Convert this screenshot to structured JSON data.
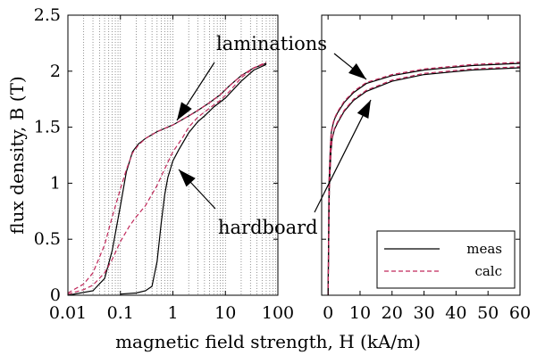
{
  "chart_data": [
    {
      "type": "line",
      "panel": "left",
      "xscale": "log",
      "xlim": [
        0.01,
        100
      ],
      "ylim": [
        0,
        2.5
      ],
      "ylabel": "flux density, B (T)",
      "xlabel": "magnetic field strength, H (kA/m)",
      "xticks": [
        "0.01",
        "0.1",
        "1",
        "10",
        "100"
      ],
      "yticks": [
        "0",
        "0.5",
        "1",
        "1.5",
        "2",
        "2.5"
      ],
      "grid": "x-minor dotted",
      "annotations": [
        "laminations",
        "hardboard"
      ],
      "series": [
        {
          "group": "laminations",
          "style": "meas",
          "x": [
            0.01,
            0.03,
            0.05,
            0.07,
            0.1,
            0.13,
            0.17,
            0.22,
            0.3,
            0.5,
            1,
            2,
            3,
            5,
            8,
            12,
            20,
            35,
            60
          ],
          "y": [
            0.0,
            0.04,
            0.15,
            0.4,
            0.8,
            1.1,
            1.28,
            1.35,
            1.4,
            1.46,
            1.52,
            1.6,
            1.65,
            1.72,
            1.79,
            1.87,
            1.96,
            2.03,
            2.07
          ]
        },
        {
          "group": "laminations",
          "style": "calc",
          "x": [
            0.01,
            0.02,
            0.03,
            0.05,
            0.07,
            0.1,
            0.13,
            0.17,
            0.22,
            0.3,
            0.5,
            1,
            2,
            3,
            5,
            8,
            12,
            20,
            35,
            60
          ],
          "y": [
            0.02,
            0.1,
            0.2,
            0.45,
            0.7,
            0.95,
            1.12,
            1.27,
            1.34,
            1.4,
            1.46,
            1.52,
            1.6,
            1.65,
            1.72,
            1.79,
            1.87,
            1.96,
            2.03,
            2.08
          ]
        },
        {
          "group": "laminations",
          "style": "calc",
          "x": [
            0.01,
            0.02,
            0.03,
            0.05,
            0.07,
            0.1,
            0.15,
            0.2,
            0.3,
            0.5,
            0.7,
            1,
            1.5,
            2,
            3,
            5,
            8,
            12,
            20,
            35,
            60
          ],
          "y": [
            0.01,
            0.05,
            0.09,
            0.2,
            0.32,
            0.48,
            0.62,
            0.7,
            0.8,
            0.98,
            1.13,
            1.28,
            1.4,
            1.5,
            1.59,
            1.67,
            1.74,
            1.82,
            1.94,
            2.03,
            2.07
          ]
        },
        {
          "group": "hardboard",
          "style": "meas",
          "x": [
            0.1,
            0.2,
            0.3,
            0.4,
            0.5,
            0.6,
            0.7,
            0.8,
            1,
            1.3,
            2,
            3,
            4,
            6,
            10,
            20,
            35,
            60
          ],
          "y": [
            0.01,
            0.02,
            0.04,
            0.08,
            0.3,
            0.65,
            0.9,
            1.05,
            1.2,
            1.3,
            1.45,
            1.55,
            1.6,
            1.68,
            1.76,
            1.91,
            2.01,
            2.06
          ]
        }
      ]
    },
    {
      "type": "line",
      "panel": "right",
      "xlim": [
        -2,
        60
      ],
      "ylim": [
        0,
        2.5
      ],
      "xticks": [
        "0",
        "10",
        "20",
        "30",
        "40",
        "50",
        "60"
      ],
      "legend": {
        "position": "bottom-right",
        "entries": [
          {
            "label": "meas",
            "style": "solid",
            "color": "#000000"
          },
          {
            "label": "calc",
            "style": "dashed",
            "color": "#c0285a"
          }
        ]
      },
      "colors": {
        "meas": "#000000",
        "calc": "#c0285a"
      },
      "series": [
        {
          "group": "laminations",
          "style": "meas",
          "x": [
            0,
            0.3,
            0.7,
            1,
            1.5,
            2,
            3,
            5,
            8,
            12,
            20,
            30,
            45,
            60
          ],
          "y": [
            0,
            1.0,
            1.32,
            1.45,
            1.52,
            1.57,
            1.63,
            1.72,
            1.81,
            1.89,
            1.96,
            2.01,
            2.05,
            2.07
          ]
        },
        {
          "group": "laminations",
          "style": "calc",
          "x": [
            0,
            0.3,
            0.7,
            1,
            1.5,
            2,
            3,
            5,
            8,
            12,
            20,
            30,
            45,
            60
          ],
          "y": [
            0,
            1.0,
            1.33,
            1.46,
            1.53,
            1.58,
            1.64,
            1.73,
            1.82,
            1.9,
            1.97,
            2.02,
            2.06,
            2.08
          ]
        },
        {
          "group": "hardboard",
          "style": "meas",
          "x": [
            0,
            0.4,
            0.9,
            1.3,
            2,
            3,
            5,
            8,
            12,
            20,
            30,
            45,
            60
          ],
          "y": [
            0,
            0.95,
            1.28,
            1.4,
            1.48,
            1.54,
            1.64,
            1.74,
            1.82,
            1.91,
            1.97,
            2.01,
            2.03
          ]
        },
        {
          "group": "hardboard",
          "style": "calc",
          "x": [
            0,
            0.4,
            0.9,
            1.3,
            2,
            3,
            5,
            8,
            12,
            20,
            30,
            45,
            60
          ],
          "y": [
            0,
            0.95,
            1.29,
            1.41,
            1.49,
            1.55,
            1.65,
            1.75,
            1.83,
            1.92,
            1.98,
            2.02,
            2.04
          ]
        }
      ]
    }
  ]
}
